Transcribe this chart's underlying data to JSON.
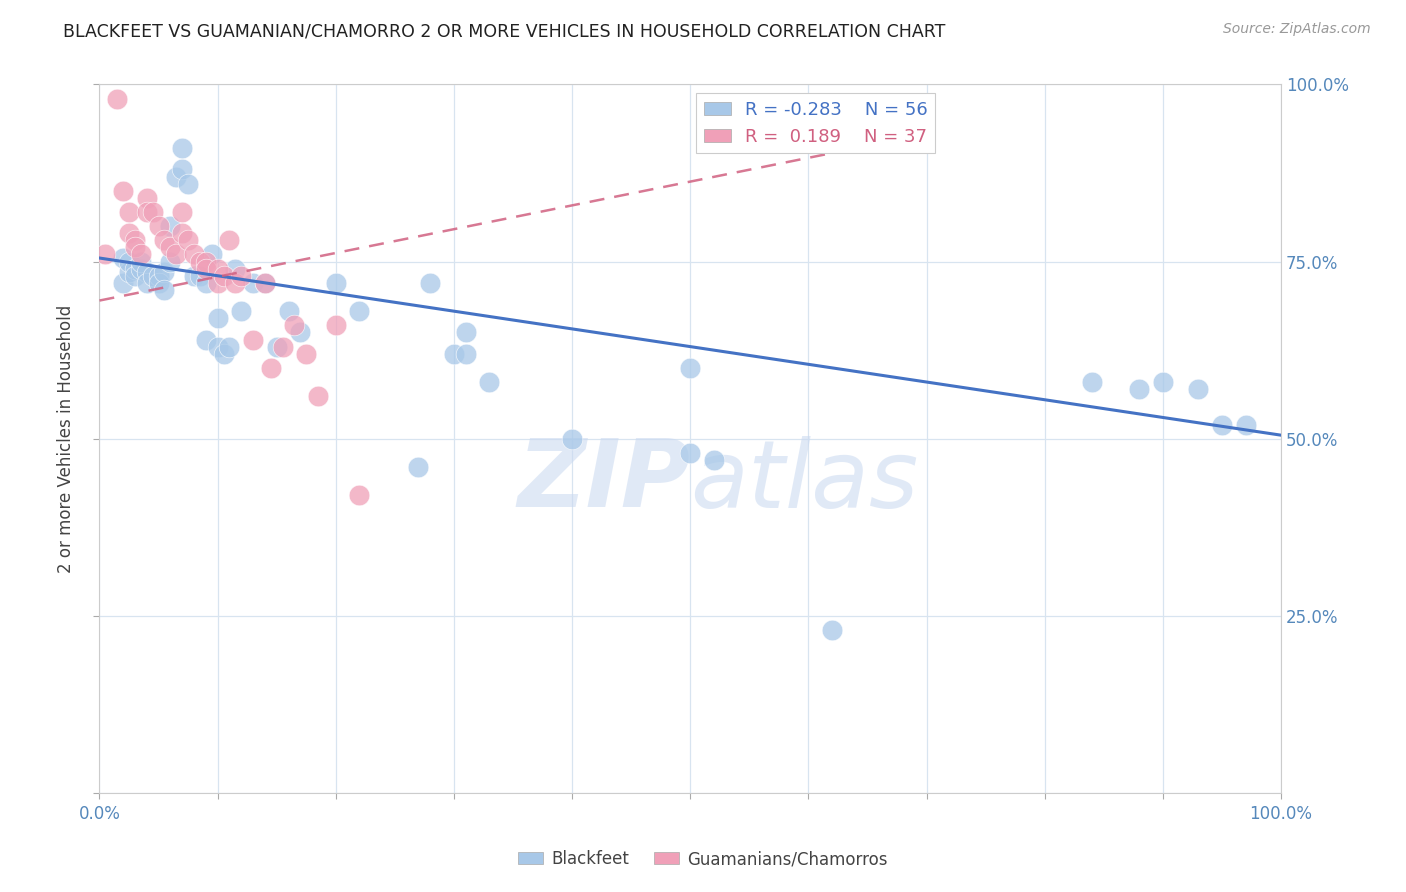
{
  "title": "BLACKFEET VS GUAMANIAN/CHAMORRO 2 OR MORE VEHICLES IN HOUSEHOLD CORRELATION CHART",
  "source": "Source: ZipAtlas.com",
  "ylabel": "2 or more Vehicles in Household",
  "xlim": [
    0.0,
    1.0
  ],
  "ylim": [
    0.0,
    1.0
  ],
  "x_tick_positions": [
    0.0,
    0.1,
    0.2,
    0.3,
    0.4,
    0.5,
    0.6,
    0.7,
    0.8,
    0.9,
    1.0
  ],
  "x_tick_labels": [
    "0.0%",
    "",
    "",
    "",
    "",
    "",
    "",
    "",
    "",
    "",
    "100.0%"
  ],
  "y_tick_positions": [
    0.0,
    0.25,
    0.5,
    0.75,
    1.0
  ],
  "y_tick_labels_right": [
    "",
    "25.0%",
    "50.0%",
    "75.0%",
    "100.0%"
  ],
  "color_blue": "#a8c8e8",
  "color_pink": "#f0a0b8",
  "color_line_blue": "#4472c4",
  "color_line_pink": "#d06080",
  "color_axis_text": "#5588bb",
  "color_grid": "#d8e4f0",
  "watermark_color": "#c8d8f0",
  "blue_line_x": [
    0.0,
    1.0
  ],
  "blue_line_y": [
    0.755,
    0.505
  ],
  "pink_line_x": [
    0.0,
    0.7
  ],
  "pink_line_y": [
    0.695,
    0.93
  ],
  "blackfeet_x": [
    0.02,
    0.02,
    0.025,
    0.025,
    0.03,
    0.03,
    0.035,
    0.035,
    0.04,
    0.04,
    0.045,
    0.05,
    0.05,
    0.055,
    0.055,
    0.06,
    0.06,
    0.065,
    0.07,
    0.07,
    0.075,
    0.08,
    0.085,
    0.09,
    0.09,
    0.095,
    0.1,
    0.1,
    0.105,
    0.11,
    0.115,
    0.12,
    0.13,
    0.14,
    0.15,
    0.16,
    0.17,
    0.2,
    0.22,
    0.27,
    0.28,
    0.3,
    0.31,
    0.31,
    0.33,
    0.4,
    0.5,
    0.5,
    0.52,
    0.62,
    0.84,
    0.88,
    0.9,
    0.93,
    0.95,
    0.97
  ],
  "blackfeet_y": [
    0.755,
    0.72,
    0.735,
    0.75,
    0.74,
    0.73,
    0.74,
    0.75,
    0.735,
    0.72,
    0.73,
    0.73,
    0.72,
    0.735,
    0.71,
    0.8,
    0.75,
    0.87,
    0.88,
    0.91,
    0.86,
    0.73,
    0.73,
    0.64,
    0.72,
    0.76,
    0.67,
    0.63,
    0.62,
    0.63,
    0.74,
    0.68,
    0.72,
    0.72,
    0.63,
    0.68,
    0.65,
    0.72,
    0.68,
    0.46,
    0.72,
    0.62,
    0.65,
    0.62,
    0.58,
    0.5,
    0.6,
    0.48,
    0.47,
    0.23,
    0.58,
    0.57,
    0.58,
    0.57,
    0.52,
    0.52
  ],
  "guamanian_x": [
    0.005,
    0.015,
    0.02,
    0.025,
    0.025,
    0.03,
    0.03,
    0.035,
    0.04,
    0.04,
    0.045,
    0.05,
    0.055,
    0.06,
    0.065,
    0.07,
    0.07,
    0.075,
    0.08,
    0.085,
    0.09,
    0.09,
    0.1,
    0.1,
    0.105,
    0.11,
    0.115,
    0.12,
    0.13,
    0.14,
    0.145,
    0.155,
    0.165,
    0.175,
    0.185,
    0.2,
    0.22
  ],
  "guamanian_y": [
    0.76,
    0.98,
    0.85,
    0.82,
    0.79,
    0.78,
    0.77,
    0.76,
    0.84,
    0.82,
    0.82,
    0.8,
    0.78,
    0.77,
    0.76,
    0.82,
    0.79,
    0.78,
    0.76,
    0.75,
    0.75,
    0.74,
    0.74,
    0.72,
    0.73,
    0.78,
    0.72,
    0.73,
    0.64,
    0.72,
    0.6,
    0.63,
    0.66,
    0.62,
    0.56,
    0.66,
    0.42
  ]
}
